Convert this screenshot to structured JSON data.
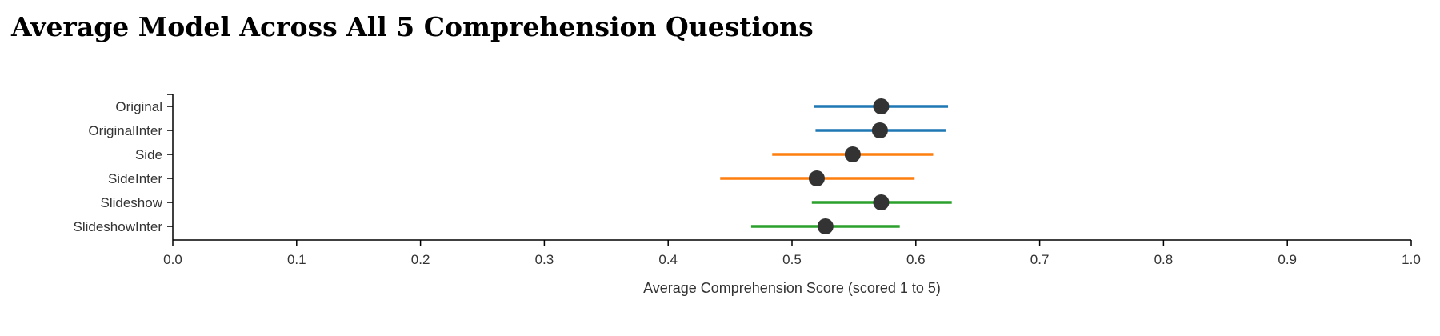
{
  "title": "Average Model Across All 5 Comprehension Questions",
  "chart_data": {
    "type": "interval",
    "title": "Average Model Across All 5 Comprehension Questions",
    "xlabel": "Average Comprehension Score (scored 1 to 5)",
    "ylabel": "",
    "xlim": [
      0.0,
      1.0
    ],
    "x_ticks": [
      "0.0",
      "0.1",
      "0.2",
      "0.3",
      "0.4",
      "0.5",
      "0.6",
      "0.7",
      "0.8",
      "0.9",
      "1.0"
    ],
    "grid": false,
    "legend": "none",
    "categories": [
      "Original",
      "OriginalInter",
      "Side",
      "SideInter",
      "Slideshow",
      "SlideshowInter"
    ],
    "points": [
      {
        "category": "Original",
        "mean": 0.572,
        "lower": 0.518,
        "upper": 0.626,
        "color": "#1f77b4"
      },
      {
        "category": "OriginalInter",
        "mean": 0.571,
        "lower": 0.519,
        "upper": 0.624,
        "color": "#1f77b4"
      },
      {
        "category": "Side",
        "mean": 0.549,
        "lower": 0.484,
        "upper": 0.614,
        "color": "#ff7f0e"
      },
      {
        "category": "SideInter",
        "mean": 0.52,
        "lower": 0.442,
        "upper": 0.599,
        "color": "#ff7f0e"
      },
      {
        "category": "Slideshow",
        "mean": 0.572,
        "lower": 0.516,
        "upper": 0.629,
        "color": "#2ca02c"
      },
      {
        "category": "SlideshowInter",
        "mean": 0.527,
        "lower": 0.467,
        "upper": 0.587,
        "color": "#2ca02c"
      }
    ],
    "marker_color": "#333333",
    "axis_color": "#000000"
  }
}
